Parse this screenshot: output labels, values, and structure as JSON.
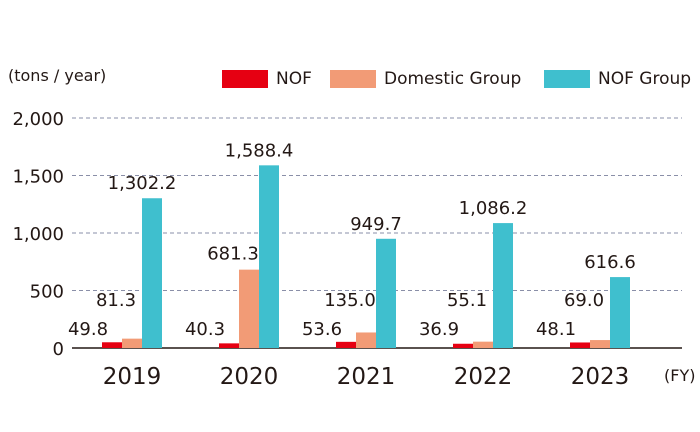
{
  "chart_data": {
    "type": "bar",
    "ylabel": "(tons / year)",
    "xunit": "(FY)",
    "categories": [
      "2019",
      "2020",
      "2021",
      "2022",
      "2023"
    ],
    "ylim": [
      0,
      2000
    ],
    "yticks": [
      0,
      500,
      1000,
      1500,
      2000
    ],
    "ytick_labels": [
      "0",
      "500",
      "1,000",
      "1,500",
      "2,000"
    ],
    "grid": true,
    "legend_position": "top-right",
    "series": [
      {
        "name": "NOF",
        "color": "#e60012",
        "values": [
          49.8,
          40.3,
          53.6,
          36.9,
          48.1
        ],
        "labels": [
          "49.8",
          "40.3",
          "53.6",
          "36.9",
          "48.1"
        ]
      },
      {
        "name": "Domestic Group",
        "color": "#f29b76",
        "values": [
          81.3,
          681.3,
          135.0,
          55.1,
          69.0
        ],
        "labels": [
          "81.3",
          "681.3",
          "135.0",
          "55.1",
          "69.0"
        ]
      },
      {
        "name": "NOF Group",
        "color": "#3fbfce",
        "values": [
          1302.2,
          1588.4,
          949.7,
          1086.2,
          616.6
        ],
        "labels": [
          "1,302.2",
          "1,588.4",
          "949.7",
          "1,086.2",
          "616.6"
        ]
      }
    ]
  }
}
